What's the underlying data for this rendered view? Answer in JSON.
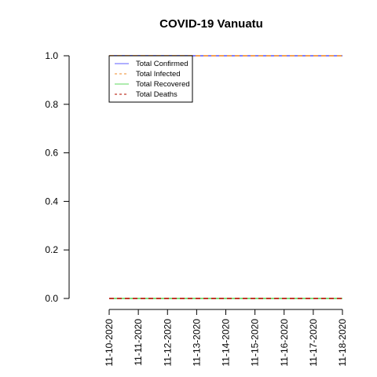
{
  "chart_data": {
    "type": "line",
    "title": "COVID-19 Vanuatu",
    "xlabel": "",
    "ylabel": "",
    "x": [
      "11-10-2020",
      "11-11-2020",
      "11-12-2020",
      "11-13-2020",
      "11-14-2020",
      "11-15-2020",
      "11-16-2020",
      "11-17-2020",
      "11-18-2020"
    ],
    "ylim": [
      0,
      1
    ],
    "yticks": [
      "0.0",
      "0.2",
      "0.4",
      "0.6",
      "0.8",
      "1.0"
    ],
    "grid": false,
    "legend_position": "top-left",
    "series": [
      {
        "name": "Total Confirmed",
        "values": [
          1,
          1,
          1,
          1,
          1,
          1,
          1,
          1,
          1
        ],
        "color": "#7f7fff",
        "dash": "solid"
      },
      {
        "name": "Total Infected",
        "values": [
          1,
          1,
          1,
          1,
          1,
          1,
          1,
          1,
          1
        ],
        "color": "#f2a055",
        "dash": "dashed"
      },
      {
        "name": "Total Recovered",
        "values": [
          0,
          0,
          0,
          0,
          0,
          0,
          0,
          0,
          0
        ],
        "color": "#7fe07f",
        "dash": "solid"
      },
      {
        "name": "Total Deaths",
        "values": [
          0,
          0,
          0,
          0,
          0,
          0,
          0,
          0,
          0
        ],
        "color": "#c0392b",
        "dash": "dashed"
      }
    ]
  }
}
